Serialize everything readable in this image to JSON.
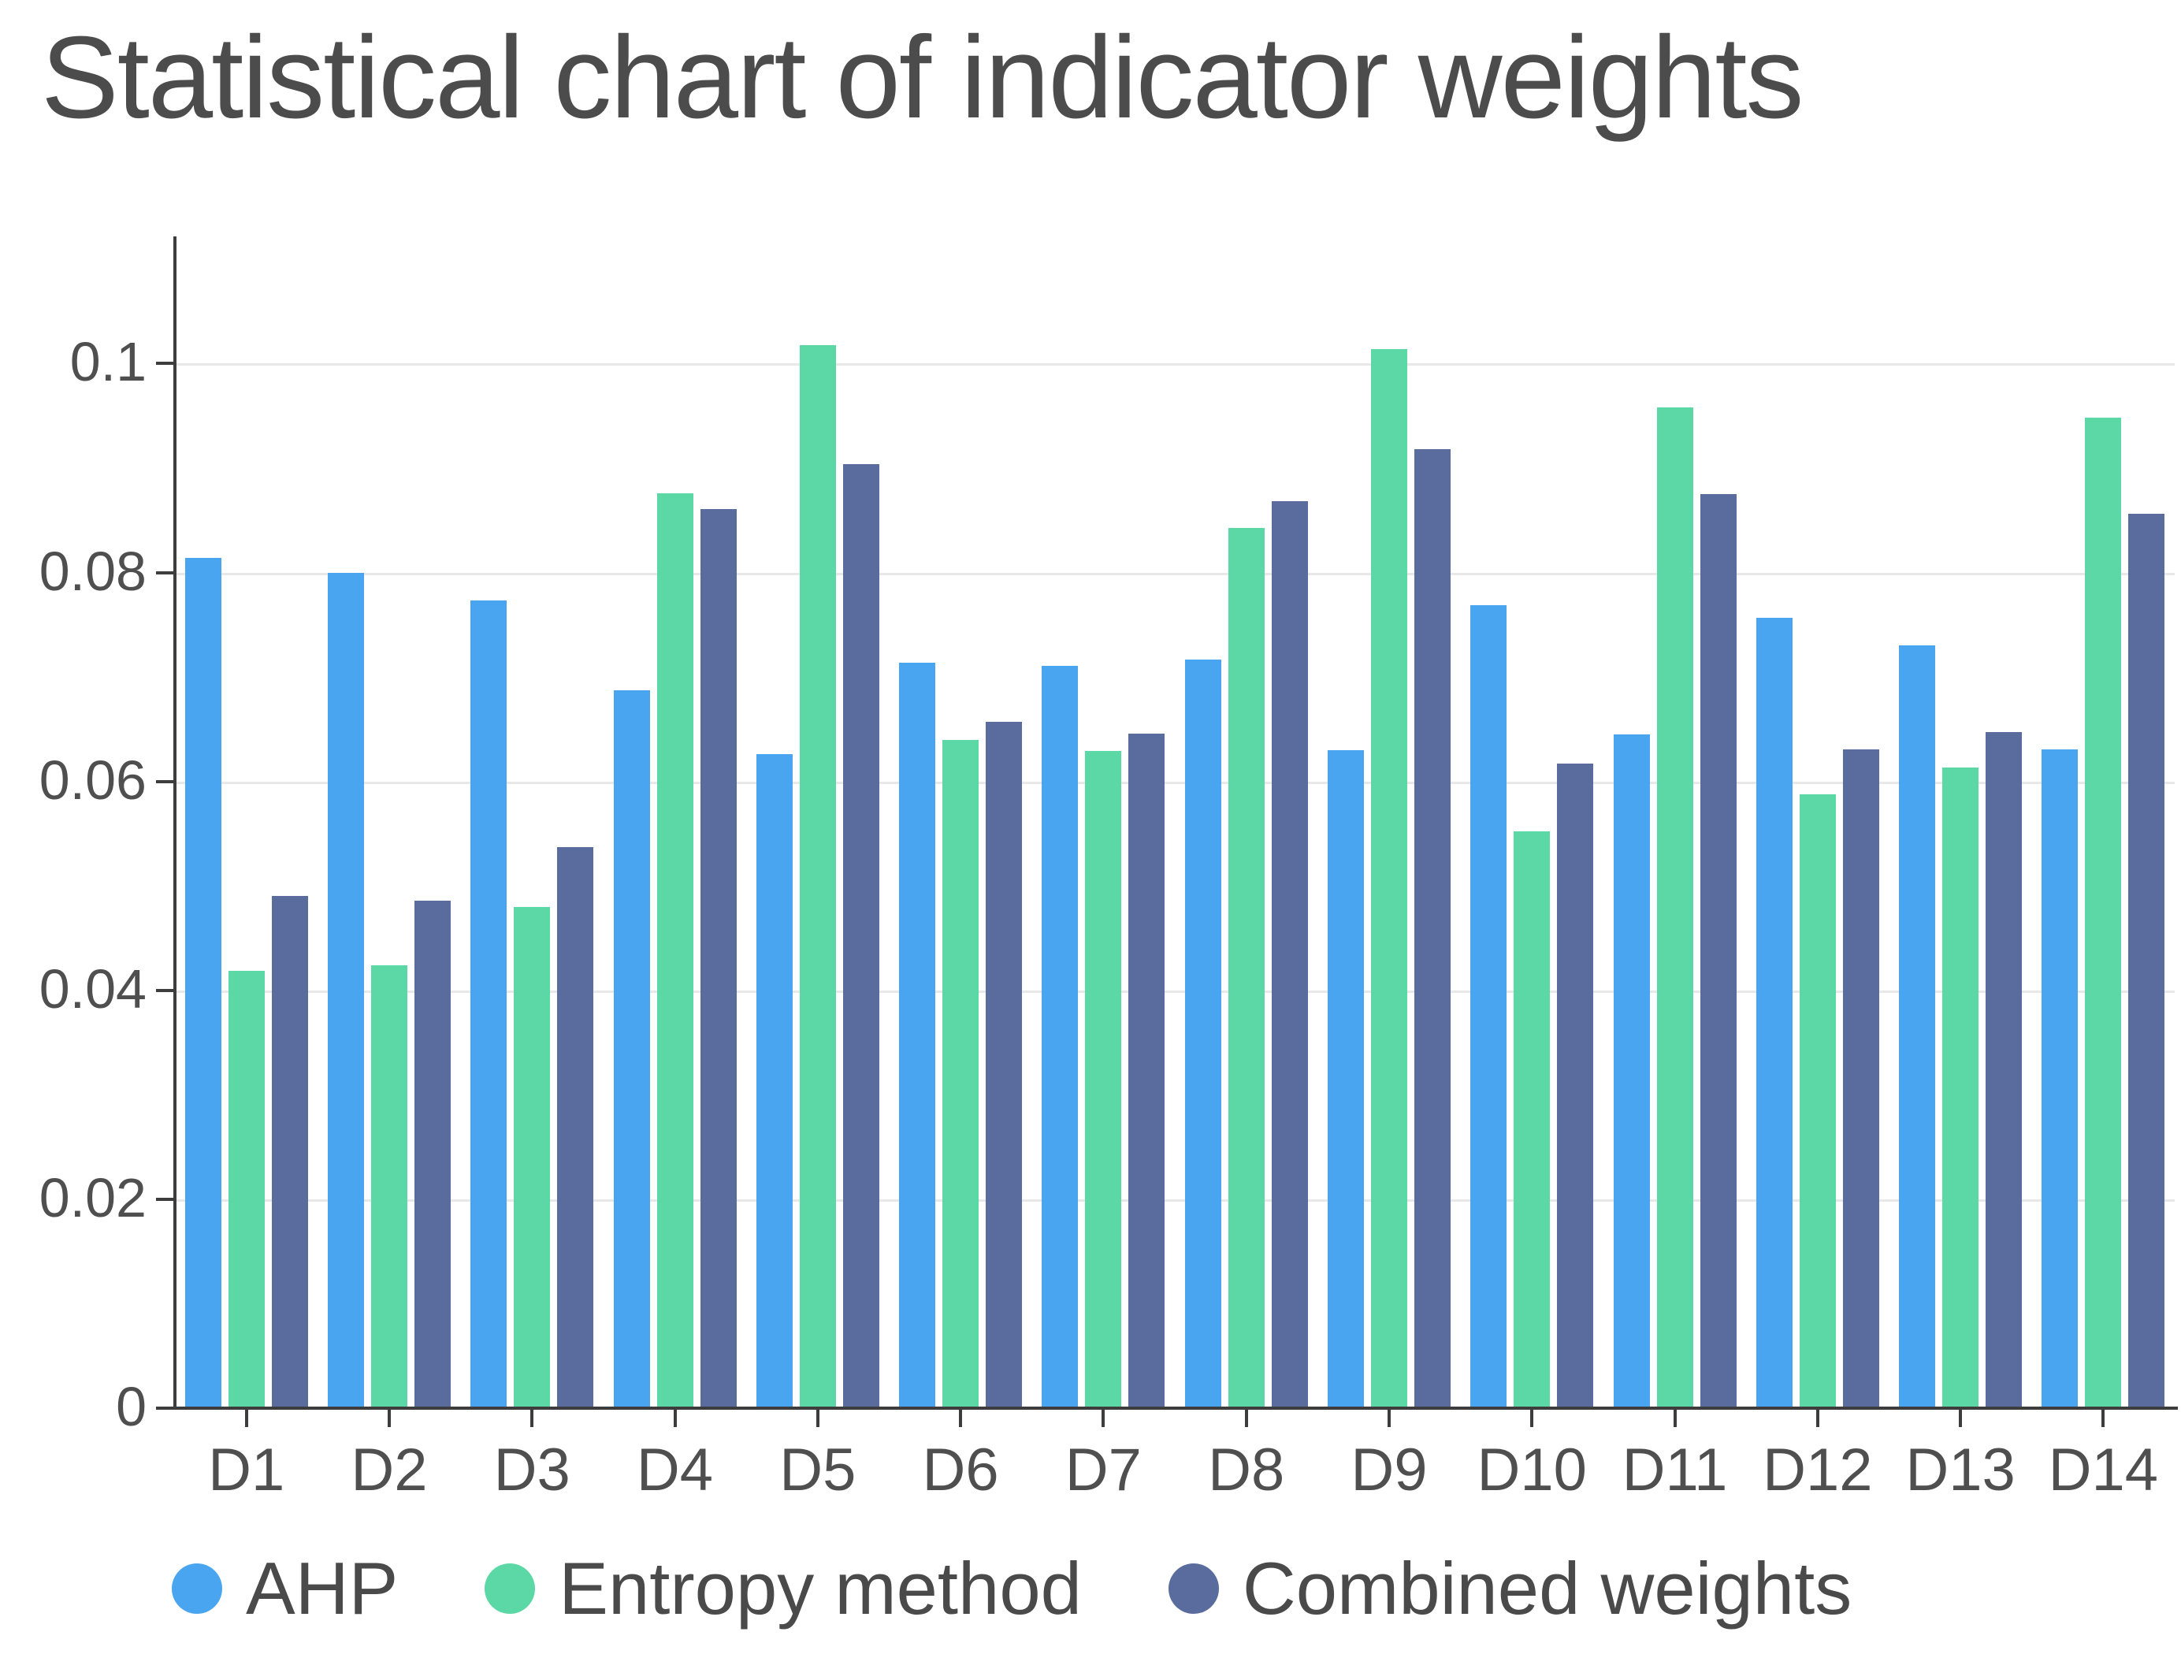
{
  "page": {
    "background_color": "#ffffff",
    "text_color": "#4c4c4c"
  },
  "chart_data": {
    "type": "bar",
    "title": "Statistical chart of indicator weights",
    "categories": [
      "D1",
      "D2",
      "D3",
      "D4",
      "D5",
      "D6",
      "D7",
      "D8",
      "D9",
      "D10",
      "D11",
      "D12",
      "D13",
      "D14"
    ],
    "series": [
      {
        "name": "AHP",
        "color": "#4aa5f0",
        "values": [
          0.0814,
          0.08,
          0.0773,
          0.0687,
          0.0626,
          0.0714,
          0.0711,
          0.0717,
          0.063,
          0.0769,
          0.0645,
          0.0757,
          0.073,
          0.0631
        ]
      },
      {
        "name": "Entropy method",
        "color": "#5bd8a6",
        "values": [
          0.0419,
          0.0424,
          0.048,
          0.0876,
          0.1018,
          0.064,
          0.0629,
          0.0843,
          0.1014,
          0.0552,
          0.0958,
          0.0588,
          0.0613,
          0.0948
        ]
      },
      {
        "name": "Combined weights",
        "color": "#5a6c9e",
        "values": [
          0.049,
          0.0486,
          0.0537,
          0.0861,
          0.0904,
          0.0657,
          0.0646,
          0.0868,
          0.0918,
          0.0617,
          0.0875,
          0.0631,
          0.0647,
          0.0856
        ]
      }
    ],
    "xlabel": "",
    "ylabel": "",
    "y_axis": {
      "min": 0,
      "render_max": 0.1118,
      "ticks": [
        0,
        0.02,
        0.04,
        0.06,
        0.08,
        0.1
      ],
      "tick_labels": [
        "0",
        "0.02",
        "0.04",
        "0.06",
        "0.08",
        "0.1"
      ]
    },
    "grid": true,
    "legend_position": "bottom-left",
    "grid_color": "#e8e8e8",
    "axis_color": "#3d3d3d",
    "label_color": "#4f4f4f"
  }
}
